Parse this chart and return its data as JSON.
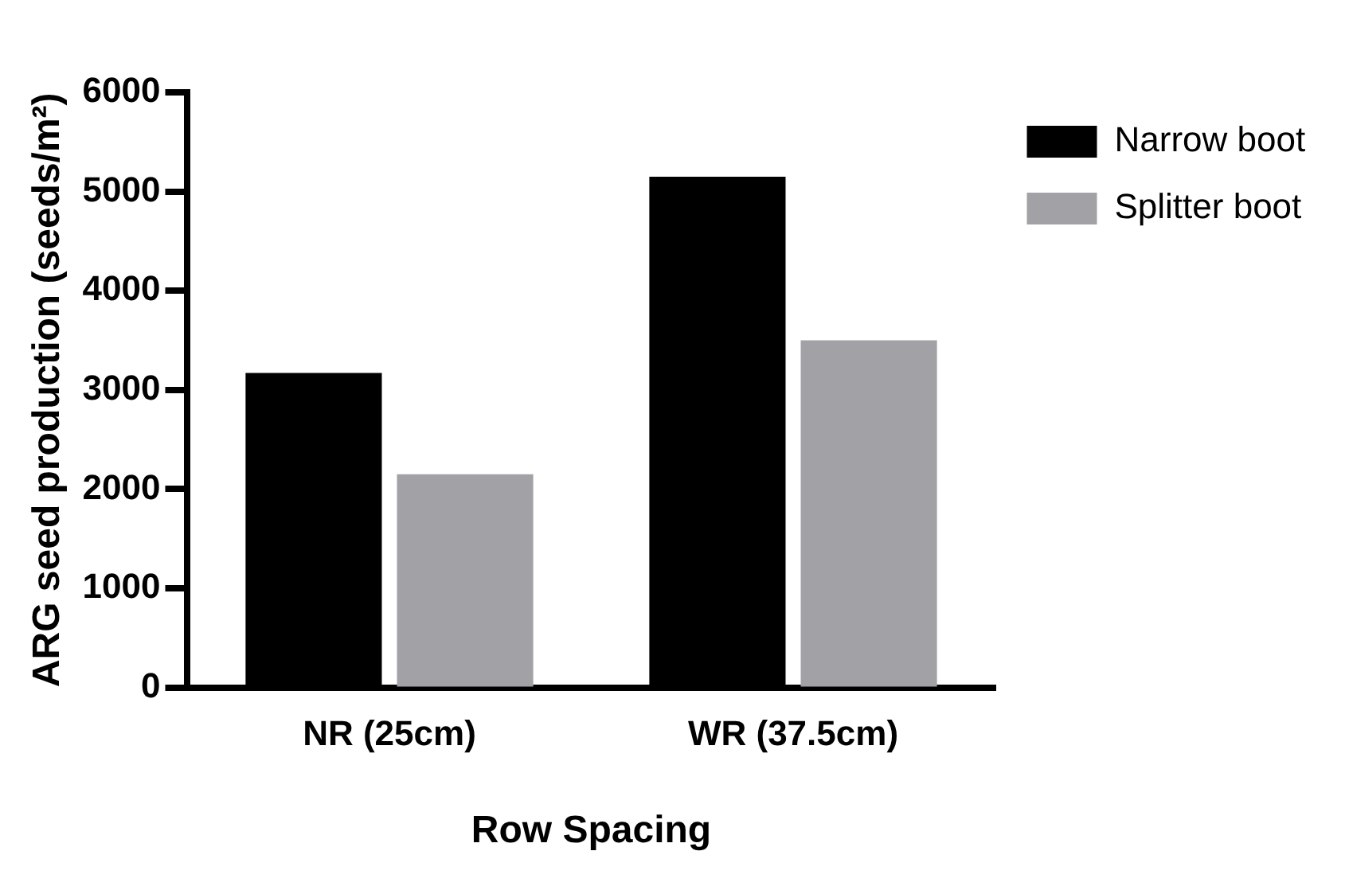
{
  "chart_data": {
    "type": "bar",
    "xlabel": "Row Spacing",
    "ylabel": "ARG seed production (seeds/m²)",
    "categories": [
      "NR (25cm)",
      "WR (37.5cm)"
    ],
    "series": [
      {
        "name": "Narrow boot",
        "color": "#000000",
        "values": [
          3170,
          5150
        ]
      },
      {
        "name": "Splitter boot",
        "color": "#a2a1a6",
        "values": [
          2150,
          3500
        ]
      }
    ],
    "ylim": [
      0,
      6000
    ],
    "yticks": [
      0,
      1000,
      2000,
      3000,
      4000,
      5000,
      6000
    ],
    "grid": false,
    "legend": "top right"
  }
}
